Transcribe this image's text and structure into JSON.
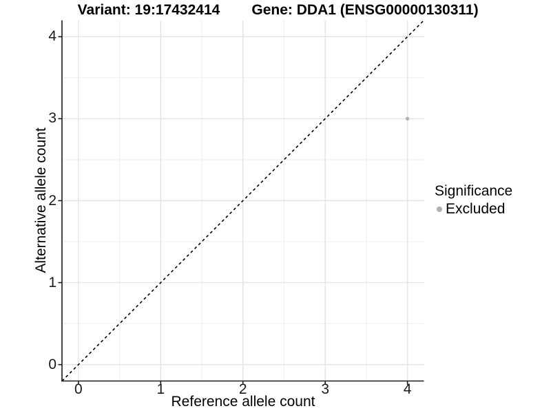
{
  "header": {
    "variant_title": "Variant: 19:17432414",
    "gene_title": "Gene: DDA1 (ENSG00000130311)"
  },
  "axes": {
    "x_label": "Reference allele count",
    "y_label": "Alternative allele count"
  },
  "legend": {
    "title": "Significance",
    "items": [
      {
        "label": "Excluded",
        "color": "#b0b0b0"
      }
    ]
  },
  "colors": {
    "background": "#ffffff",
    "axis_line": "#1a1a1a",
    "major_gridline": "#e4e4e4",
    "minor_gridline": "#f0f0f0",
    "identity_line": "#000000",
    "point": "#b0b0b0"
  },
  "chart_data": {
    "type": "scatter",
    "title": "Variant: 19:17432414 | Gene: DDA1 (ENSG00000130311)",
    "xlabel": "Reference allele count",
    "ylabel": "Alternative allele count",
    "xlim": [
      -0.2,
      4.2
    ],
    "ylim": [
      -0.2,
      4.2
    ],
    "x_ticks": [
      0,
      1,
      2,
      3,
      4
    ],
    "y_ticks": [
      0,
      1,
      2,
      3,
      4
    ],
    "x_minor_ticks": [
      0.5,
      1.5,
      2.5,
      3.5
    ],
    "y_minor_ticks": [
      0.5,
      1.5,
      2.5,
      3.5
    ],
    "grid": true,
    "series": [
      {
        "name": "Excluded",
        "color": "#b0b0b0",
        "points": [
          {
            "x": 4,
            "y": 3
          }
        ]
      }
    ],
    "reference_line": {
      "type": "identity y=x",
      "from": [
        -0.2,
        -0.2
      ],
      "to": [
        4.2,
        4.2
      ],
      "style": "dashed",
      "color": "#000000"
    },
    "legend": {
      "title": "Significance",
      "position": "right",
      "entries": [
        "Excluded"
      ]
    }
  }
}
